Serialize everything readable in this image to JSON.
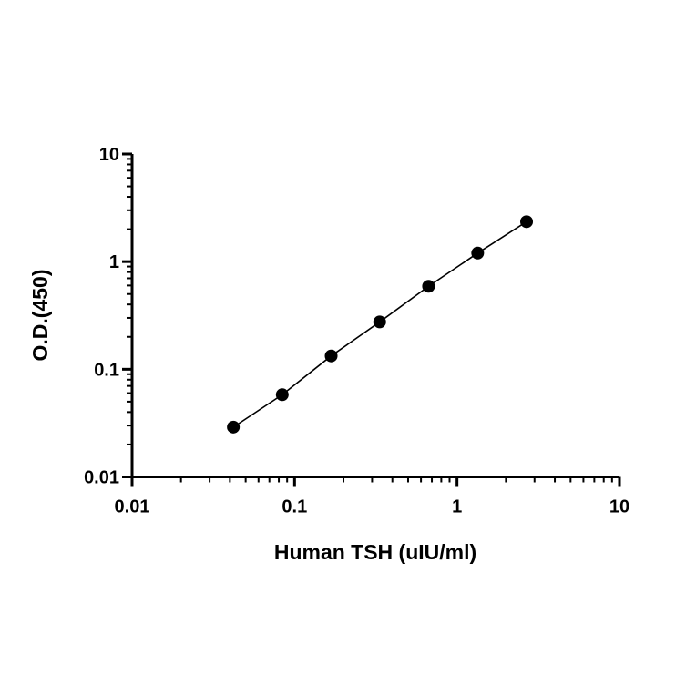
{
  "chart_data": {
    "type": "scatter",
    "xlabel": "Human TSH (uIU/ml)",
    "ylabel": "O.D.(450)",
    "xscale": "log",
    "yscale": "log",
    "xlim": [
      0.01,
      10
    ],
    "ylim": [
      0.01,
      10
    ],
    "xticks": [
      "0.01",
      "0.1",
      "1",
      "10"
    ],
    "yticks": [
      "0.01",
      "0.1",
      "1",
      "10"
    ],
    "grid": false,
    "series": [
      {
        "x": [
          0.042,
          0.084,
          0.168,
          0.334,
          0.668,
          1.34,
          2.68
        ],
        "y": [
          0.029,
          0.058,
          0.133,
          0.275,
          0.59,
          1.2,
          2.35
        ],
        "color": "#000000",
        "fit_line": true
      }
    ]
  }
}
